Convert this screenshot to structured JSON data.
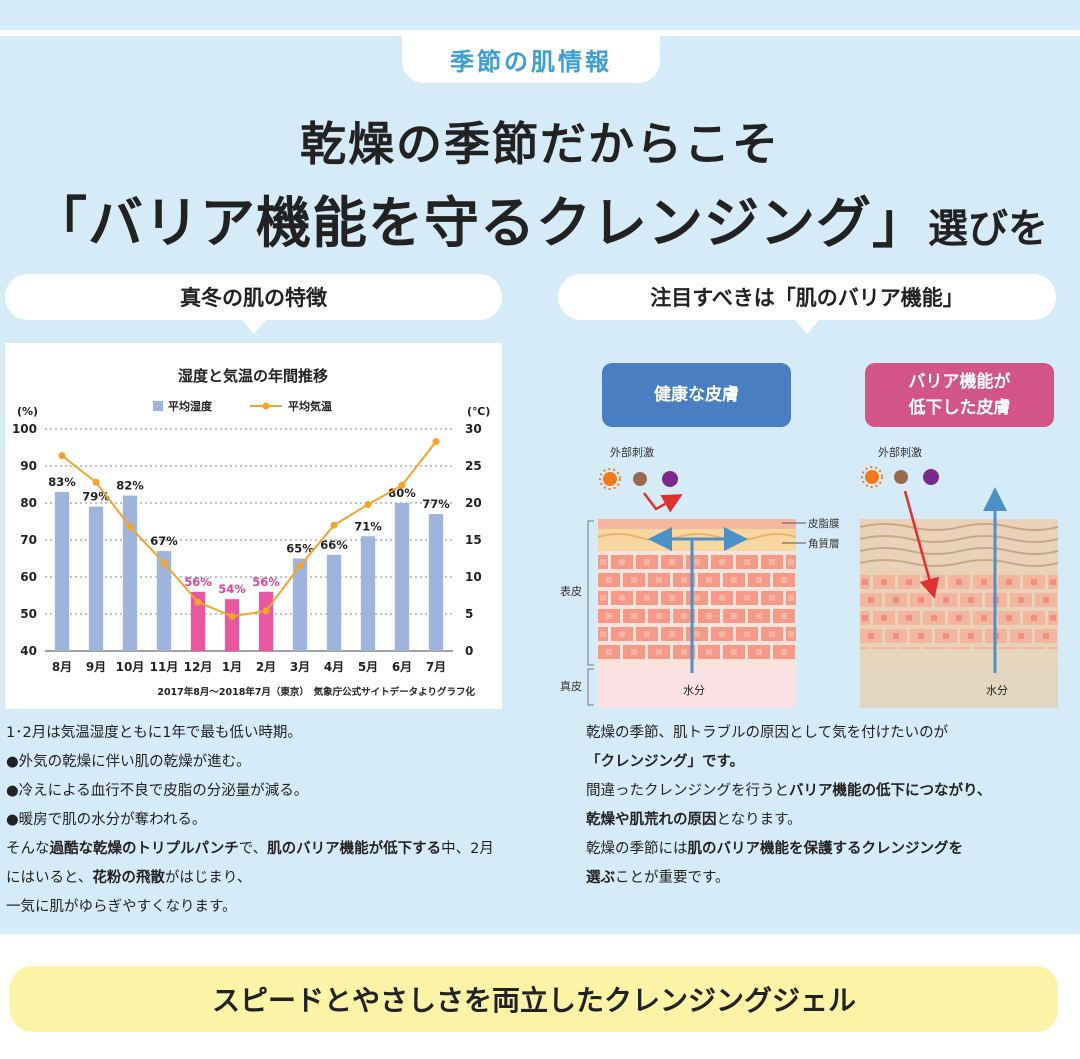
{
  "header": {
    "tag": "季節の肌情報",
    "title_line1": "乾燥の季節だからこそ",
    "title_line2_big": "「バリア機能を守るクレンジング」",
    "title_line2_small": "選びを"
  },
  "left": {
    "pill": "真冬の肌の特徴",
    "notes": [
      "1･2月は気温湿度ともに1年で最も低い時期。",
      "●外気の乾燥に伴い肌の乾燥が進む。",
      "●冷えによる血行不良で皮脂の分泌量が減る。",
      "●暖房で肌の水分が奪われる。"
    ],
    "para_a": "そんな",
    "para_b": "過酷な乾燥のトリプルパンチ",
    "para_c": "で、",
    "para_d": "肌のバリア機能が低下する",
    "para_e": "中、2月にはいると、",
    "para_f": "花粉の飛散",
    "para_g": "がはじまり、",
    "para_h": "一気に肌がゆらぎやすくなります。"
  },
  "right": {
    "pill": "注目すべきは「肌のバリア機能」",
    "healthy_label": "健康な皮膚",
    "damaged_label_1": "バリア機能が",
    "damaged_label_2": "低下した皮膚",
    "stimulus": "外部刺激",
    "sebum": "皮脂膜",
    "stratum": "角質層",
    "epidermis": "表皮",
    "dermis": "真皮",
    "water": "水分",
    "p1": "乾燥の季節、肌トラブルの原因として気を付けたいのが",
    "p2": "「クレンジング」です。",
    "p3a": "間違ったクレンジングを行うと",
    "p3b": "バリア機能の低下につながり、",
    "p4a": "乾燥や肌荒れの原因",
    "p4b": "となります。",
    "p5a": "乾燥の季節には",
    "p5b": "肌のバリア機能を保護するクレンジングを",
    "p6a": "選ぶ",
    "p6b": "ことが重要です。"
  },
  "footer": {
    "banner": "スピードとやさしさを両立したクレンジングジェル"
  },
  "colors": {
    "background": "#d6ebf8",
    "accent_blue": "#3f9fd4",
    "bar_blue": "#9fb4dc",
    "bar_pink": "#e8579f",
    "line_orange": "#f0a62e",
    "healthy_button": "#4a7ec2",
    "damaged_button": "#d35588",
    "banner_yellow": "#fbf3a6"
  },
  "chart_data": {
    "type": "bar",
    "title": "湿度と気温の年間推移",
    "categories": [
      "8月",
      "9月",
      "10月",
      "11月",
      "12月",
      "1月",
      "2月",
      "3月",
      "4月",
      "5月",
      "6月",
      "7月"
    ],
    "series": [
      {
        "name": "平均湿度",
        "type": "bar",
        "axis": "left",
        "values": [
          83,
          79,
          82,
          67,
          56,
          54,
          56,
          65,
          66,
          71,
          80,
          77
        ],
        "labels": [
          "83%",
          "79%",
          "82%",
          "67%",
          "56%",
          "54%",
          "56%",
          "65%",
          "66%",
          "71%",
          "80%",
          "77%"
        ]
      },
      {
        "name": "平均気温",
        "type": "line",
        "axis": "right",
        "values": [
          26.4,
          22.8,
          16.8,
          11.9,
          6.6,
          4.7,
          5.4,
          11.5,
          17.0,
          19.8,
          22.4,
          28.3
        ]
      }
    ],
    "highlight_categories": [
      "12月",
      "1月",
      "2月"
    ],
    "ylabel_left": "(%)",
    "ylabel_right": "(℃)",
    "ylim_left": [
      40,
      100
    ],
    "ylim_right": [
      0,
      30
    ],
    "yticks_left": [
      "40",
      "50",
      "60",
      "70",
      "80",
      "90",
      "100"
    ],
    "yticks_right": [
      "0",
      "5",
      "10",
      "15",
      "20",
      "25",
      "30"
    ],
    "grid": true,
    "legend_placement": "top-center",
    "note": "2017年8月〜2018年7月（東京）　気象庁公式サイトデータよりグラフ化"
  }
}
